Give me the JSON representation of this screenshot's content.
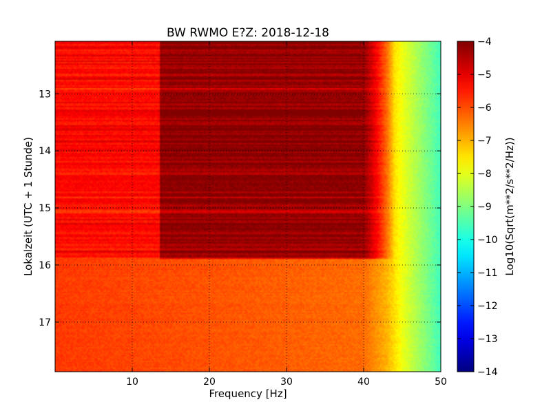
{
  "chart_data": {
    "type": "heatmap",
    "title": "BW RWMO E?Z: 2018-12-18",
    "xlabel": "Frequency [Hz]",
    "ylabel": "Lokalzeit (UTC + 1 Stunde)",
    "xlim": [
      0,
      50
    ],
    "ylim": [
      12.08,
      17.87
    ],
    "y_inverted": true,
    "x_ticks": [
      10,
      20,
      30,
      40,
      50
    ],
    "x_tick_labels": [
      "10",
      "20",
      "30",
      "40",
      "50"
    ],
    "y_ticks": [
      13,
      14,
      15,
      16,
      17
    ],
    "y_tick_labels": [
      "13",
      "14",
      "15",
      "16",
      "17"
    ],
    "grid": true,
    "colormap": "jet",
    "colorbar": {
      "label": "Log10(Sqrt(m**2/s**2/Hz))",
      "range": [
        -14,
        -4
      ],
      "ticks": [
        -4,
        -5,
        -6,
        -7,
        -8,
        -9,
        -10,
        -11,
        -12,
        -13,
        -14
      ],
      "tick_labels": [
        "−4",
        "−5",
        "−6",
        "−7",
        "−8",
        "−9",
        "−10",
        "−11",
        "−12",
        "−13",
        "−14"
      ]
    },
    "active_period": {
      "time_range": [
        12.08,
        15.9
      ],
      "band_hz": [
        13.5,
        40
      ],
      "level": -4.3
    },
    "quiet_period": {
      "time_range": [
        15.9,
        17.87
      ],
      "level": -6.3
    },
    "spectral_rolloff": [
      {
        "hz": 0,
        "level": -5.8
      },
      {
        "hz": 40,
        "level": -6.3
      },
      {
        "hz": 43,
        "level": -7.0
      },
      {
        "hz": 45,
        "level": -7.9
      },
      {
        "hz": 47,
        "level": -8.6
      },
      {
        "hz": 50,
        "level": -9.6
      }
    ]
  }
}
